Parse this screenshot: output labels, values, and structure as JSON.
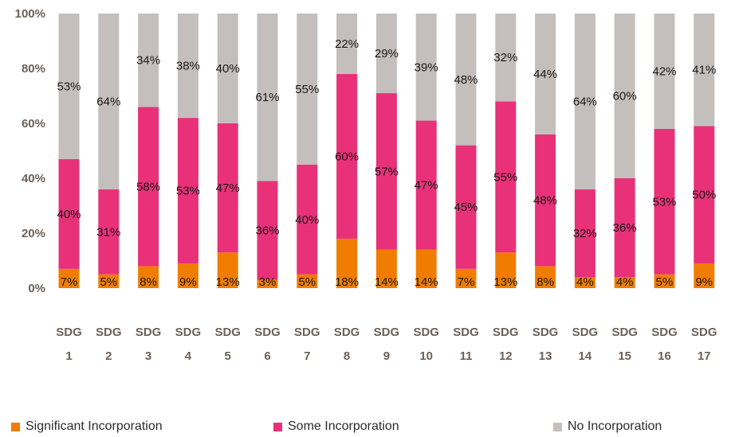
{
  "chart_data": {
    "type": "bar",
    "stacked": true,
    "categories": [
      "SDG 1",
      "SDG 2",
      "SDG 3",
      "SDG 4",
      "SDG 5",
      "SDG 6",
      "SDG 7",
      "SDG 8",
      "SDG 9",
      "SDG 10",
      "SDG 11",
      "SDG 12",
      "SDG 13",
      "SDG 14",
      "SDG 15",
      "SDG 16",
      "SDG 17"
    ],
    "series": [
      {
        "name": "Significant Incorporation",
        "color": "#f07d00",
        "values": [
          7,
          5,
          8,
          9,
          13,
          3,
          5,
          18,
          14,
          14,
          7,
          13,
          8,
          4,
          4,
          5,
          9
        ],
        "labels": [
          "7%",
          "5%",
          "8%",
          "9%",
          "13%",
          "3%",
          "5%",
          "18%",
          "14%",
          "14%",
          "7%",
          "13%",
          "8%",
          "4%",
          "4%",
          "5%",
          "9%"
        ]
      },
      {
        "name": "Some Incorporation",
        "color": "#e83178",
        "values": [
          40,
          31,
          58,
          53,
          47,
          36,
          40,
          60,
          57,
          47,
          45,
          55,
          48,
          32,
          36,
          53,
          50
        ],
        "labels": [
          "40%",
          "31%",
          "58%",
          "53%",
          "47%",
          "36%",
          "40%",
          "60%",
          "57%",
          "47%",
          "45%",
          "55%",
          "48%",
          "32%",
          "36%",
          "53%",
          "50%"
        ]
      },
      {
        "name": "No Incorporation",
        "color": "#c4bfbc",
        "values": [
          53,
          64,
          34,
          38,
          40,
          61,
          55,
          22,
          29,
          39,
          48,
          32,
          44,
          64,
          60,
          42,
          41
        ],
        "labels": [
          "53%",
          "64%",
          "34%",
          "38%",
          "40%",
          "61%",
          "55%",
          "22%",
          "29%",
          "39%",
          "48%",
          "32%",
          "44%",
          "64%",
          "60%",
          "42%",
          "41%"
        ]
      }
    ],
    "ylim": [
      0,
      100
    ],
    "yticks": [
      "0%",
      "20%",
      "40%",
      "60%",
      "80%",
      "100%"
    ],
    "grid": false,
    "legend": "bottom"
  }
}
